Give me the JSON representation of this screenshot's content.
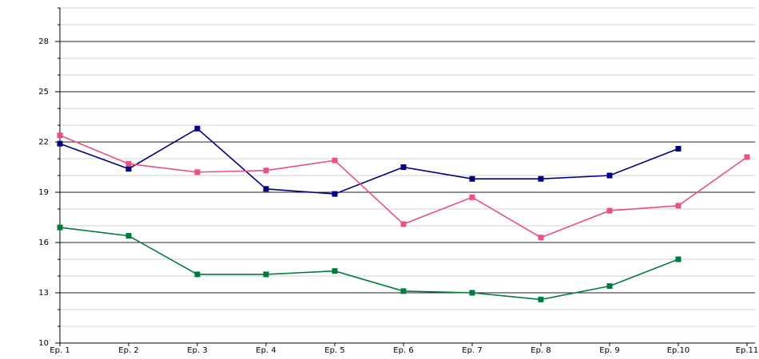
{
  "chart_data": {
    "type": "line",
    "categories": [
      "Ep. 1",
      "Ep. 2",
      "Ep. 3",
      "Ep. 4",
      "Ep. 5",
      "Ep. 6",
      "Ep. 7",
      "Ep. 8",
      "Ep. 9",
      "Ep.10",
      "Ep.11"
    ],
    "series": [
      {
        "color": "#000080",
        "values": [
          21.9,
          20.4,
          22.8,
          19.2,
          18.9,
          20.5,
          19.8,
          19.8,
          20.0,
          21.6,
          null
        ]
      },
      {
        "color": "#e8508a",
        "values": [
          22.4,
          20.7,
          20.2,
          20.3,
          20.9,
          17.1,
          18.7,
          16.3,
          17.9,
          18.2,
          21.1
        ]
      },
      {
        "color": "#007a3d",
        "values": [
          16.9,
          16.4,
          14.1,
          14.1,
          14.3,
          13.1,
          13.0,
          12.6,
          13.4,
          15.0,
          null
        ]
      }
    ],
    "ylim": [
      10,
      30
    ],
    "yticks": [
      10,
      13,
      16,
      19,
      22,
      25,
      28
    ],
    "minor_yticks": [
      11,
      12,
      14,
      15,
      17,
      18,
      20,
      21,
      23,
      24,
      26,
      27,
      29,
      30
    ],
    "grid": true
  }
}
